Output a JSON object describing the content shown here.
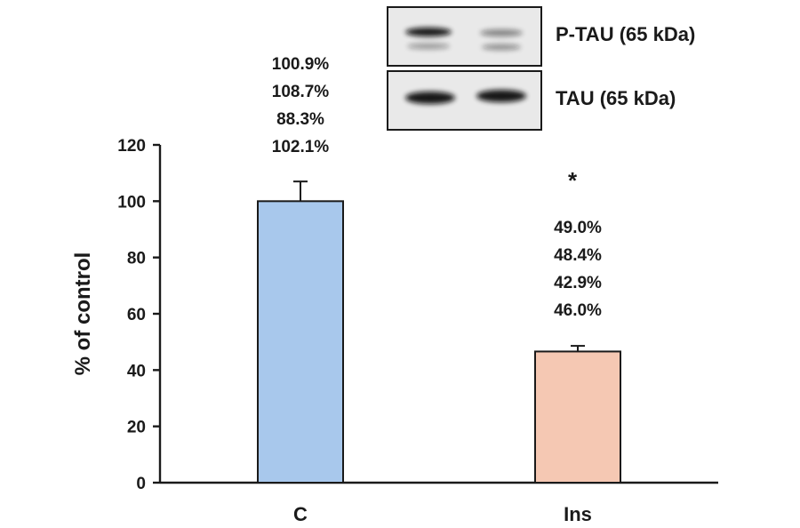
{
  "chart_data": {
    "type": "bar",
    "categories": [
      "C",
      "Ins"
    ],
    "values": [
      100,
      46.6
    ],
    "errors": [
      7,
      2
    ],
    "ylabel": "% of control",
    "ylim": [
      0,
      120
    ],
    "yticks": [
      0,
      20,
      40,
      60,
      80,
      100,
      120
    ],
    "grid": false,
    "bar_colors": [
      "#a8c8ec",
      "#f5c8b3"
    ],
    "replicate_labels": [
      [
        "100.9%",
        "108.7%",
        "88.3%",
        "102.1%"
      ],
      [
        "49.0%",
        "48.4%",
        "42.9%",
        "46.0%"
      ]
    ],
    "significance": [
      "",
      "*"
    ],
    "blot_labels": [
      "P-TAU (65 kDa)",
      "TAU (65 kDa)"
    ]
  }
}
